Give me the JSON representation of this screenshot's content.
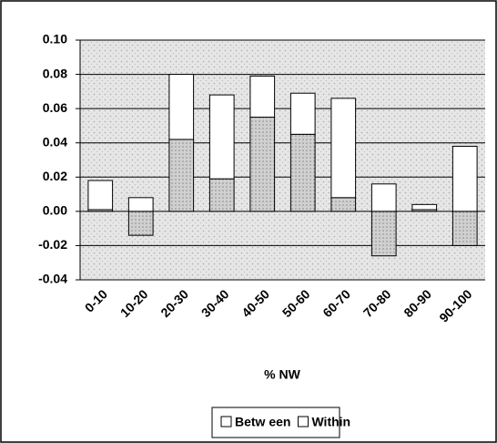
{
  "chart_data": {
    "type": "bar",
    "stacked": true,
    "categories": [
      "0-10",
      "10-20",
      "20-30",
      "30-40",
      "40-50",
      "50-60",
      "60-70",
      "70-80",
      "80-90",
      "90-100"
    ],
    "x_label": "% NW",
    "series": [
      {
        "name": "Betw een",
        "color": "#c4c4c4",
        "values": [
          0.001,
          -0.014,
          0.042,
          0.019,
          0.055,
          0.045,
          0.008,
          -0.026,
          0.001,
          -0.02
        ]
      },
      {
        "name": "Within",
        "color": "#ffffff",
        "values": [
          0.017,
          0.008,
          0.038,
          0.049,
          0.024,
          0.024,
          0.058,
          0.016,
          0.003,
          0.038
        ]
      }
    ],
    "ylim": [
      -0.04,
      0.1
    ],
    "yticks": [
      {
        "value": -0.04,
        "label": "-0.04"
      },
      {
        "value": -0.02,
        "label": "-0.02"
      },
      {
        "value": 0,
        "label": "0.00"
      },
      {
        "value": 0.02,
        "label": "0.02"
      },
      {
        "value": 0.04,
        "label": "0.04"
      },
      {
        "value": 0.06,
        "label": "0.06"
      },
      {
        "value": 0.08,
        "label": "0.08"
      },
      {
        "value": 0.1,
        "label": "0.10"
      }
    ],
    "grid": true,
    "legend": "bottom"
  }
}
